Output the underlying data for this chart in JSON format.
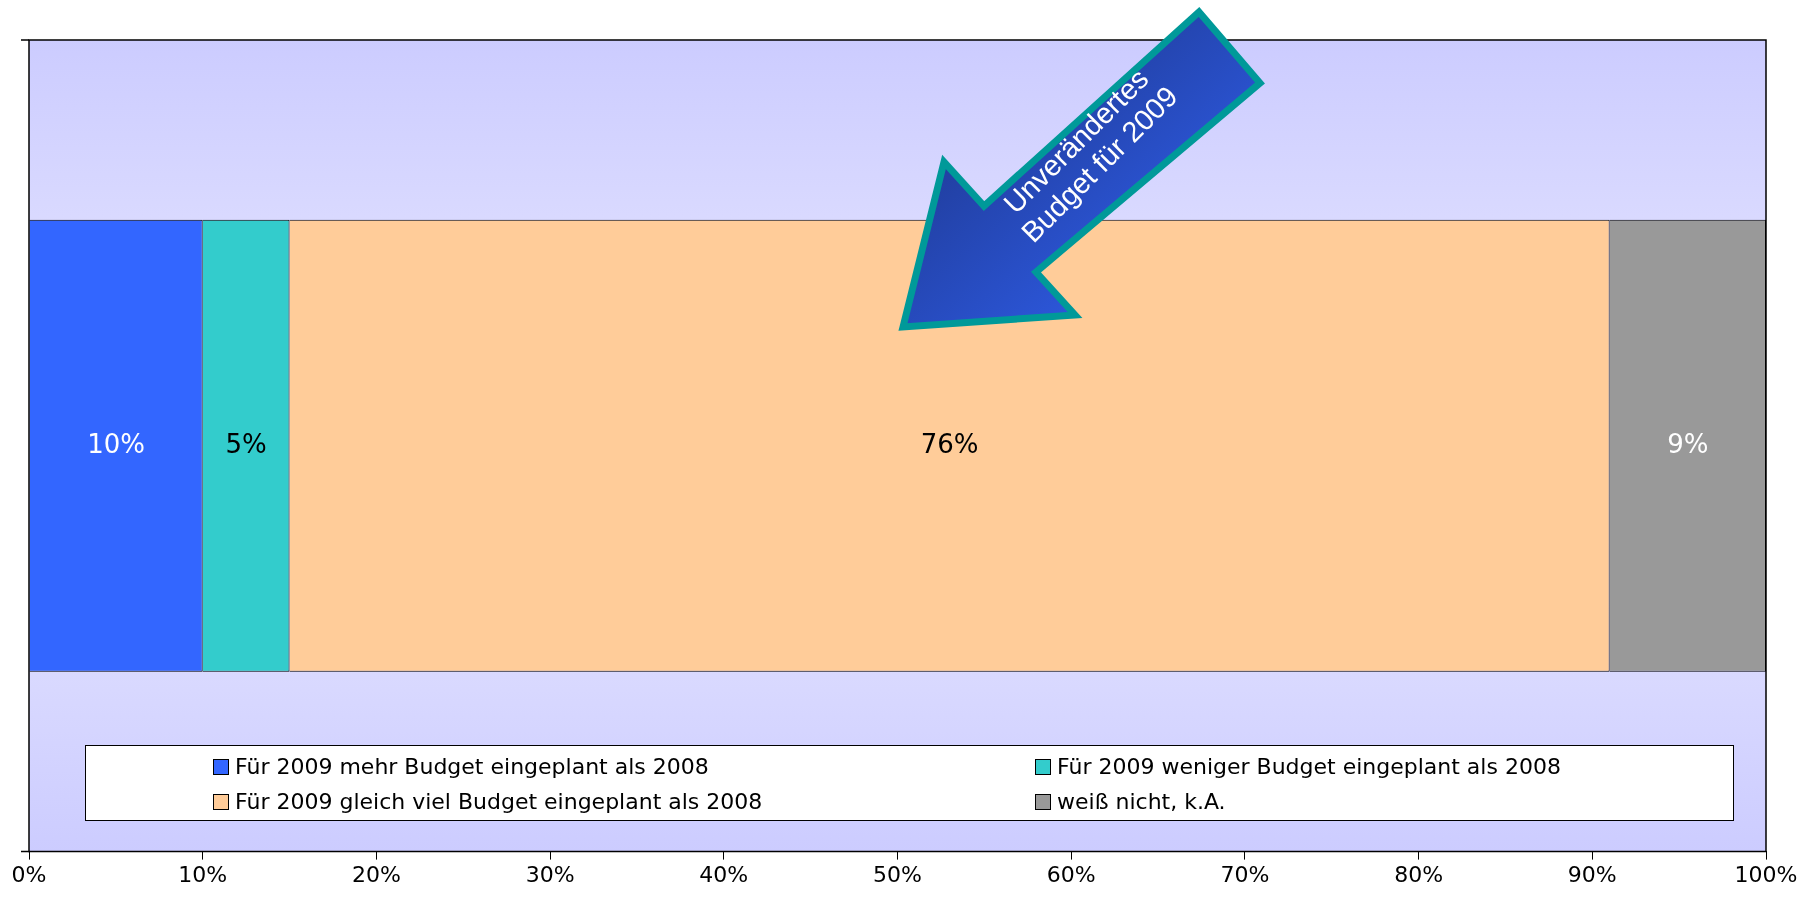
{
  "chart_data": {
    "type": "bar",
    "orientation": "horizontal",
    "stacked": true,
    "categories": [
      null
    ],
    "series": [
      {
        "name": "Für 2009 mehr Budget eingeplant als 2008",
        "color": "#3366ff",
        "values": [
          10
        ],
        "value_labels": [
          "10%"
        ]
      },
      {
        "name": "Für 2009 weniger Budget eingeplant als 2008",
        "color": "#33cccc",
        "values": [
          5
        ],
        "value_labels": [
          "5%"
        ]
      },
      {
        "name": "Für 2009 gleich viel Budget eingeplant als 2008",
        "color": "#ffcc99",
        "values": [
          76
        ],
        "value_labels": [
          "76%"
        ]
      },
      {
        "name": "weiß nicht, k.A.",
        "color": "#999999",
        "values": [
          9
        ],
        "value_labels": [
          "9%"
        ]
      }
    ],
    "xlim": [
      0,
      100
    ],
    "xticks": [
      {
        "value": 0,
        "label": "0%"
      },
      {
        "value": 10,
        "label": "10%"
      },
      {
        "value": 20,
        "label": "20%"
      },
      {
        "value": 30,
        "label": "30%"
      },
      {
        "value": 40,
        "label": "40%"
      },
      {
        "value": 50,
        "label": "50%"
      },
      {
        "value": 60,
        "label": "60%"
      },
      {
        "value": 70,
        "label": "70%"
      },
      {
        "value": 80,
        "label": "80%"
      },
      {
        "value": 90,
        "label": "90%"
      },
      {
        "value": 100,
        "label": "100%"
      }
    ],
    "tick_labels": "x",
    "grid": false,
    "legend": "bottom",
    "annotations": [
      "Unverändertes Budget für 2009"
    ]
  }
}
